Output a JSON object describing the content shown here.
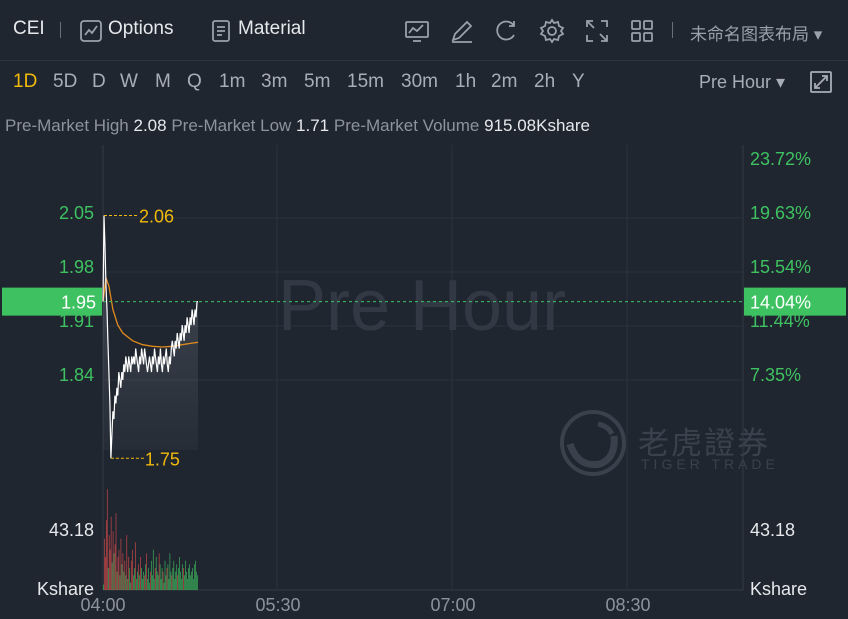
{
  "header": {
    "ticker": "CEI",
    "options_label": "Options",
    "material_label": "Material",
    "layout_name": "未命名图表布局"
  },
  "periods": [
    "1D",
    "5D",
    "D",
    "W",
    "M",
    "Q",
    "1m",
    "3m",
    "5m",
    "15m",
    "30m",
    "1h",
    "2m",
    "2h",
    "Y"
  ],
  "active_period": "1D",
  "session_selector": "Pre Hour",
  "stats": {
    "high_label": "Pre-Market High",
    "high_value": "2.08",
    "low_label": "Pre-Market Low",
    "low_value": "1.71",
    "volume_label": "Pre-Market Volume",
    "volume_value": "915.08Kshare"
  },
  "watermark": {
    "session": "Pre Hour",
    "brand": "老虎證券",
    "brand_sub": "TIGER TRADE"
  },
  "colors": {
    "up": "#3ec261",
    "down": "#e04c4c",
    "accent": "#f0b90b",
    "avg_line": "#e08a1e",
    "price_line": "#ffffff"
  },
  "chart_data": {
    "type": "line",
    "x_ticks": [
      "04:00",
      "05:30",
      "07:00",
      "08:30"
    ],
    "y_ticks": [
      "2.05",
      "1.98",
      "1.91",
      "1.84"
    ],
    "y_right_ticks": [
      "23.72%",
      "19.63%",
      "15.54%",
      "11.44%",
      "7.35%"
    ],
    "ylim": [
      1.735,
      2.15
    ],
    "current_price": "1.95",
    "current_change": "14.04%",
    "high_marker": "2.06",
    "low_marker": "1.75",
    "price_series": {
      "x": [
        0,
        1,
        2,
        3,
        4,
        5,
        6,
        7,
        8,
        9,
        10,
        11,
        12,
        13,
        14,
        15,
        16,
        17,
        18,
        19,
        20,
        21,
        22,
        23,
        24,
        25,
        26,
        27,
        28,
        29,
        30,
        31,
        32,
        33,
        34,
        35,
        36,
        37,
        38,
        39,
        40,
        41,
        42,
        43,
        44,
        45,
        46,
        47,
        48,
        49,
        50,
        51,
        52,
        53,
        54,
        55,
        56,
        57,
        58,
        59,
        60,
        61,
        62,
        63,
        64,
        65,
        66,
        67,
        68,
        69,
        70,
        71,
        72,
        73,
        74,
        75,
        76,
        77,
        78,
        79,
        80,
        81,
        82,
        83,
        84,
        85,
        86,
        87,
        88,
        89,
        90,
        91,
        92,
        93,
        94,
        95,
        96
      ],
      "y": [
        1.95,
        2.06,
        2.02,
        1.97,
        1.94,
        1.9,
        1.86,
        1.82,
        1.75,
        1.78,
        1.81,
        1.8,
        1.83,
        1.82,
        1.84,
        1.83,
        1.86,
        1.85,
        1.84,
        1.86,
        1.85,
        1.87,
        1.86,
        1.88,
        1.87,
        1.86,
        1.88,
        1.87,
        1.86,
        1.88,
        1.87,
        1.88,
        1.87,
        1.89,
        1.88,
        1.87,
        1.86,
        1.88,
        1.87,
        1.89,
        1.88,
        1.87,
        1.89,
        1.88,
        1.87,
        1.86,
        1.87,
        1.88,
        1.87,
        1.86,
        1.88,
        1.87,
        1.89,
        1.88,
        1.87,
        1.86,
        1.88,
        1.87,
        1.89,
        1.87,
        1.86,
        1.88,
        1.87,
        1.88,
        1.89,
        1.87,
        1.86,
        1.88,
        1.87,
        1.89,
        1.9,
        1.89,
        1.88,
        1.9,
        1.89,
        1.91,
        1.9,
        1.89,
        1.91,
        1.9,
        1.92,
        1.91,
        1.9,
        1.92,
        1.91,
        1.93,
        1.92,
        1.91,
        1.93,
        1.92,
        1.94,
        1.93,
        1.92,
        1.94,
        1.93,
        1.95,
        1.95
      ]
    },
    "avg_series": {
      "x": [
        0,
        3,
        6,
        10,
        15,
        20,
        25,
        30,
        40,
        50,
        60,
        70,
        80,
        90,
        96
      ],
      "y": [
        1.95,
        1.98,
        1.97,
        1.94,
        1.92,
        1.91,
        1.905,
        1.9,
        1.895,
        1.893,
        1.892,
        1.893,
        1.895,
        1.897,
        1.898
      ]
    },
    "volume_axis_label": "43.18",
    "volume_unit": "Kshare",
    "volume_max": 60,
    "volume_values": [
      3,
      28,
      18,
      38,
      55,
      12,
      30,
      22,
      40,
      15,
      32,
      20,
      25,
      42,
      10,
      18,
      22,
      8,
      28,
      14,
      20,
      10,
      16,
      8,
      30,
      6,
      18,
      12,
      4,
      16,
      22,
      8,
      12,
      26,
      6,
      10,
      14,
      8,
      18,
      12,
      6,
      10,
      8,
      14,
      20,
      6,
      12,
      4,
      10,
      16,
      8,
      22,
      6,
      12,
      18,
      10,
      8,
      20,
      14,
      6,
      12,
      10,
      4,
      16,
      8,
      12,
      14,
      6,
      20,
      10,
      8,
      12,
      16,
      6,
      10,
      14,
      8,
      12,
      18,
      10,
      6,
      14,
      12,
      8,
      16,
      10,
      6,
      12,
      14,
      8,
      10,
      12,
      6,
      14,
      16,
      10,
      8
    ],
    "volume_colors": [
      "g",
      "r",
      "r",
      "r",
      "r",
      "g",
      "r",
      "r",
      "r",
      "g",
      "r",
      "g",
      "r",
      "r",
      "g",
      "r",
      "r",
      "g",
      "r",
      "g",
      "r",
      "g",
      "r",
      "g",
      "r",
      "g",
      "r",
      "g",
      "g",
      "r",
      "r",
      "g",
      "g",
      "r",
      "g",
      "g",
      "r",
      "g",
      "r",
      "g",
      "g",
      "g",
      "r",
      "g",
      "r",
      "g",
      "g",
      "g",
      "r",
      "g",
      "g",
      "g",
      "g",
      "r",
      "g",
      "g",
      "g",
      "r",
      "g",
      "g",
      "g",
      "r",
      "g",
      "g",
      "g",
      "r",
      "g",
      "g",
      "g",
      "g",
      "r",
      "g",
      "g",
      "g",
      "g",
      "g",
      "r",
      "g",
      "g",
      "g",
      "g",
      "g",
      "r",
      "g",
      "g",
      "g",
      "g",
      "g",
      "g",
      "g",
      "g",
      "g",
      "g",
      "g",
      "g",
      "g",
      "g"
    ]
  }
}
